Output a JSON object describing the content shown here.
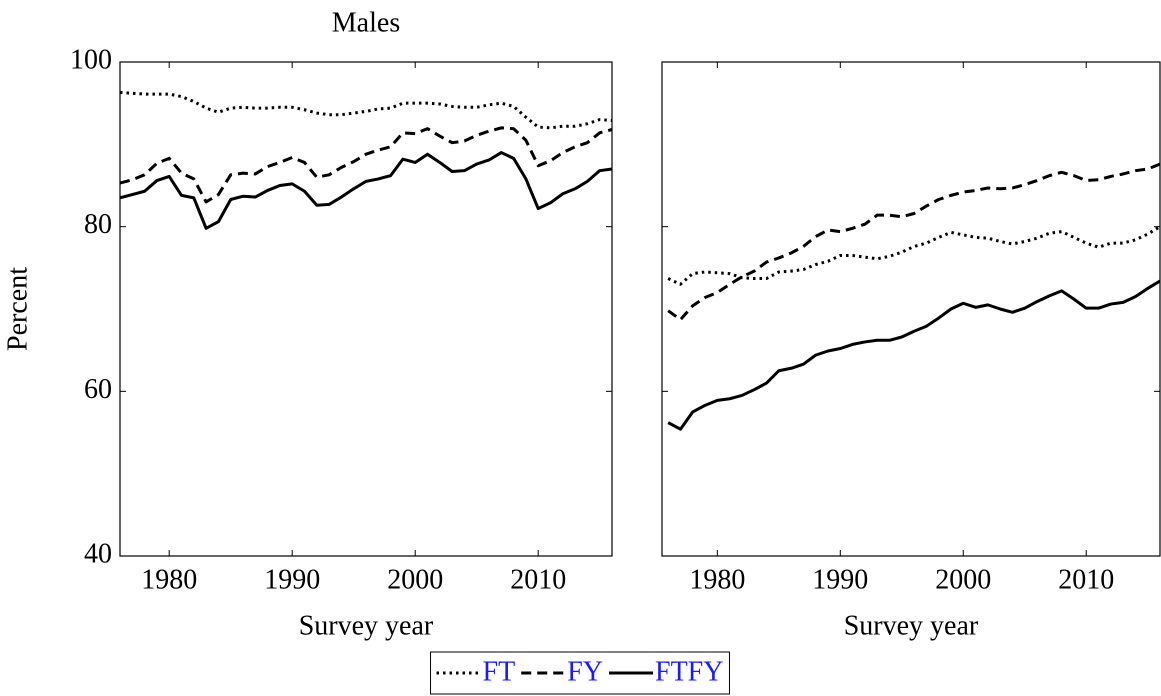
{
  "chart_data": [
    {
      "type": "line",
      "title": "Males",
      "ylabel": "Percent",
      "xlabel": "Survey year",
      "x": [
        1976,
        1977,
        1978,
        1979,
        1980,
        1981,
        1982,
        1983,
        1984,
        1985,
        1986,
        1987,
        1988,
        1989,
        1990,
        1991,
        1992,
        1993,
        1994,
        1995,
        1996,
        1997,
        1998,
        1999,
        2000,
        2001,
        2002,
        2003,
        2004,
        2005,
        2006,
        2007,
        2008,
        2009,
        2010,
        2011,
        2012,
        2013,
        2014,
        2015,
        2016
      ],
      "xlim": [
        1976,
        2016
      ],
      "xticks": [
        1980,
        1990,
        2000,
        2010
      ],
      "ylim": [
        40,
        100
      ],
      "yticks": [
        40,
        60,
        80,
        100
      ],
      "ytick_labels": true,
      "series": [
        {
          "name": "FT",
          "color": "#000000",
          "dash": "dotted",
          "values": [
            96.3,
            96.2,
            96.1,
            96.1,
            96.1,
            95.8,
            95.2,
            94.4,
            93.9,
            94.4,
            94.5,
            94.4,
            94.4,
            94.5,
            94.5,
            94.2,
            93.8,
            93.6,
            93.6,
            93.8,
            94.0,
            94.3,
            94.4,
            95.0,
            95.0,
            95.0,
            94.9,
            94.6,
            94.5,
            94.5,
            94.8,
            95.0,
            94.6,
            93.3,
            92.1,
            92.0,
            92.2,
            92.2,
            92.5,
            93.0,
            92.9
          ]
        },
        {
          "name": "FY",
          "color": "#000000",
          "dash": "dashed",
          "values": [
            85.3,
            85.7,
            86.3,
            87.7,
            88.3,
            86.5,
            85.8,
            83.0,
            83.9,
            86.3,
            86.5,
            86.4,
            87.3,
            87.8,
            88.4,
            87.8,
            86.0,
            86.3,
            87.2,
            87.9,
            88.8,
            89.3,
            89.7,
            91.4,
            91.3,
            91.9,
            91.0,
            90.2,
            90.4,
            91.1,
            91.6,
            92.0,
            91.9,
            90.5,
            87.4,
            88.0,
            89.0,
            89.7,
            90.2,
            91.4,
            91.8
          ]
        },
        {
          "name": "FTFY",
          "color": "#000000",
          "dash": "solid",
          "values": [
            83.5,
            83.9,
            84.3,
            85.6,
            86.1,
            83.8,
            83.5,
            79.8,
            80.6,
            83.3,
            83.7,
            83.6,
            84.4,
            85.0,
            85.2,
            84.3,
            82.6,
            82.7,
            83.6,
            84.6,
            85.5,
            85.8,
            86.2,
            88.2,
            87.8,
            88.8,
            87.8,
            86.7,
            86.8,
            87.6,
            88.1,
            89.0,
            88.3,
            85.8,
            82.2,
            82.9,
            84.0,
            84.6,
            85.5,
            86.8,
            87.0
          ]
        }
      ]
    },
    {
      "type": "line",
      "xlabel": "Survey year",
      "x": [
        1976,
        1977,
        1978,
        1979,
        1980,
        1981,
        1982,
        1983,
        1984,
        1985,
        1986,
        1987,
        1988,
        1989,
        1990,
        1991,
        1992,
        1993,
        1994,
        1995,
        1996,
        1997,
        1998,
        1999,
        2000,
        2001,
        2002,
        2003,
        2004,
        2005,
        2006,
        2007,
        2008,
        2009,
        2010,
        2011,
        2012,
        2013,
        2014,
        2015,
        2016
      ],
      "xlim": [
        1975.5,
        2016
      ],
      "xticks": [
        1980,
        1990,
        2000,
        2010
      ],
      "ylim": [
        40,
        100
      ],
      "yticks": [
        40,
        60,
        80,
        100
      ],
      "ytick_labels": false,
      "series": [
        {
          "color": "#000000",
          "dash": "dotted",
          "values": [
            73.7,
            73.0,
            74.3,
            74.5,
            74.4,
            74.3,
            73.8,
            73.7,
            73.7,
            74.5,
            74.6,
            74.8,
            75.4,
            75.8,
            76.5,
            76.5,
            76.3,
            76.1,
            76.4,
            76.9,
            77.6,
            78.0,
            78.7,
            79.3,
            79.0,
            78.7,
            78.6,
            78.2,
            77.9,
            78.2,
            78.6,
            79.2,
            79.4,
            78.7,
            78.0,
            77.5,
            78.0,
            78.0,
            78.4,
            79.1,
            80.0
          ]
        },
        {
          "color": "#000000",
          "dash": "dashed",
          "values": [
            69.8,
            68.7,
            70.4,
            71.4,
            72.0,
            73.0,
            73.9,
            74.6,
            75.7,
            76.2,
            76.8,
            77.6,
            78.8,
            79.6,
            79.4,
            79.8,
            80.3,
            81.4,
            81.4,
            81.2,
            81.6,
            82.5,
            83.3,
            83.8,
            84.2,
            84.4,
            84.7,
            84.6,
            84.7,
            85.1,
            85.6,
            86.2,
            86.6,
            86.2,
            85.6,
            85.7,
            86.1,
            86.4,
            86.8,
            87.0,
            87.6
          ]
        },
        {
          "color": "#000000",
          "dash": "solid",
          "values": [
            56.2,
            55.4,
            57.5,
            58.3,
            58.9,
            59.1,
            59.5,
            60.2,
            61.0,
            62.5,
            62.8,
            63.3,
            64.4,
            64.9,
            65.2,
            65.7,
            66.0,
            66.2,
            66.2,
            66.6,
            67.3,
            67.9,
            68.9,
            70.0,
            70.7,
            70.2,
            70.5,
            70.0,
            69.6,
            70.1,
            70.9,
            71.6,
            72.2,
            71.2,
            70.1,
            70.1,
            70.6,
            70.8,
            71.5,
            72.5,
            73.4
          ]
        }
      ]
    }
  ]
}
